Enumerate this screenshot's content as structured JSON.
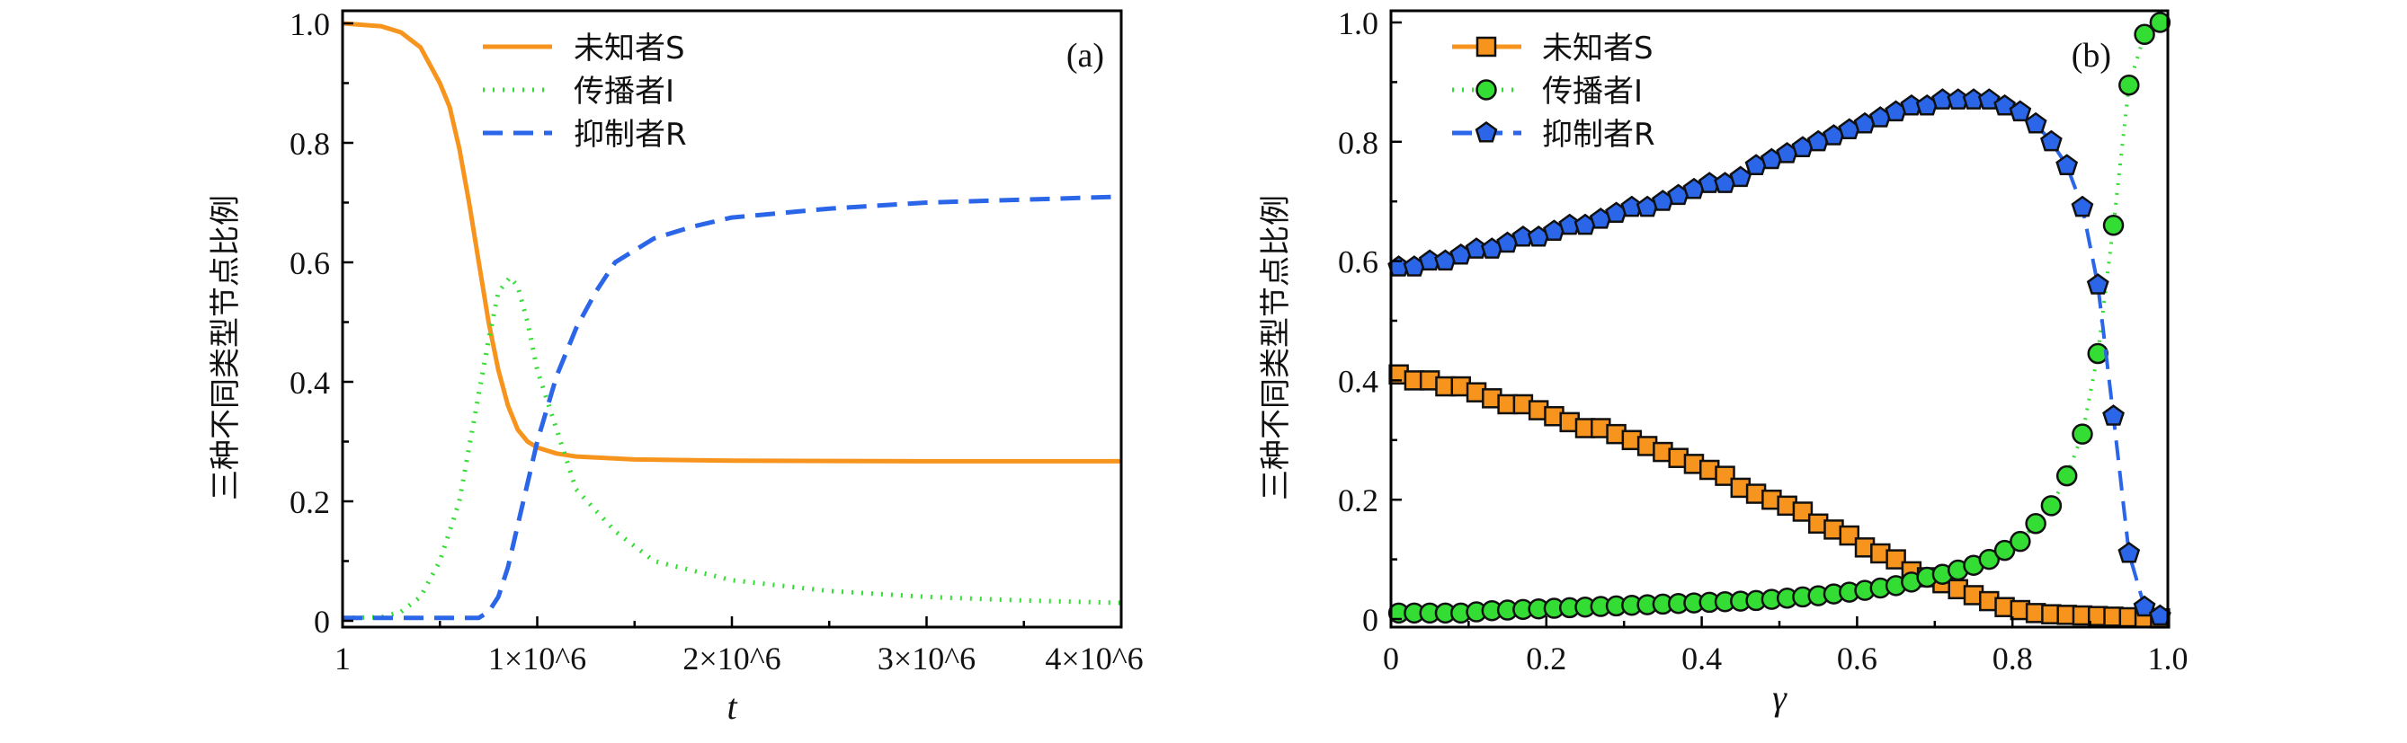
{
  "chart_data": [
    {
      "panel_label": "(a)",
      "type": "line",
      "xlabel": "t",
      "ylabel": "三种不同类型节点比例",
      "xlim": [
        1,
        4000000
      ],
      "ylim": [
        0,
        1.0
      ],
      "xticks": [
        1,
        1000000,
        2000000,
        3000000,
        4000000
      ],
      "xtick_labels": [
        "1",
        "1×10^6",
        "2×10^6",
        "3×10^6",
        "4×10^6"
      ],
      "yticks": [
        0,
        0.2,
        0.4,
        0.6,
        0.8,
        1.0
      ],
      "ytick_labels": [
        "0",
        "0.2",
        "0.4",
        "0.6",
        "0.8",
        "1.0"
      ],
      "grid": false,
      "legend_position": "top-center",
      "series": [
        {
          "name": "未知者S",
          "color": "#f7941d",
          "style": "solid",
          "x": [
            1,
            200000,
            300000,
            400000,
            500000,
            550000,
            600000,
            650000,
            700000,
            750000,
            800000,
            850000,
            900000,
            950000,
            1000000,
            1100000,
            1200000,
            1500000,
            2000000,
            3000000,
            4000000
          ],
          "y": [
            1.0,
            0.995,
            0.985,
            0.96,
            0.9,
            0.86,
            0.79,
            0.7,
            0.6,
            0.5,
            0.42,
            0.36,
            0.32,
            0.3,
            0.29,
            0.28,
            0.275,
            0.27,
            0.268,
            0.267,
            0.267
          ]
        },
        {
          "name": "传播者I",
          "color": "#33dd33",
          "style": "dotted",
          "x": [
            1,
            200000,
            300000,
            400000,
            500000,
            600000,
            700000,
            750000,
            800000,
            860000,
            900000,
            950000,
            1000000,
            1100000,
            1200000,
            1400000,
            1600000,
            2000000,
            2500000,
            3000000,
            3500000,
            4000000
          ],
          "y": [
            0.005,
            0.006,
            0.015,
            0.04,
            0.1,
            0.2,
            0.38,
            0.47,
            0.55,
            0.575,
            0.56,
            0.5,
            0.42,
            0.32,
            0.22,
            0.15,
            0.1,
            0.068,
            0.05,
            0.04,
            0.034,
            0.03
          ]
        },
        {
          "name": "抑制者R",
          "color": "#2b66e8",
          "style": "dashed",
          "x": [
            1,
            700000,
            750000,
            800000,
            850000,
            900000,
            950000,
            1000000,
            1100000,
            1200000,
            1300000,
            1400000,
            1600000,
            1800000,
            2000000,
            2500000,
            3000000,
            3500000,
            4000000
          ],
          "y": [
            0.005,
            0.005,
            0.015,
            0.04,
            0.09,
            0.16,
            0.23,
            0.3,
            0.41,
            0.49,
            0.55,
            0.6,
            0.64,
            0.66,
            0.675,
            0.69,
            0.7,
            0.705,
            0.71
          ]
        }
      ]
    },
    {
      "panel_label": "(b)",
      "type": "line",
      "xlabel": "γ",
      "ylabel": "三种不同类型节点比例",
      "xlim": [
        0,
        1.0
      ],
      "ylim": [
        0,
        1.0
      ],
      "xticks": [
        0,
        0.2,
        0.4,
        0.6,
        0.8,
        1.0
      ],
      "xtick_labels": [
        "0",
        "0.2",
        "0.4",
        "0.6",
        "0.8",
        "1.0"
      ],
      "yticks": [
        0,
        0.2,
        0.4,
        0.6,
        0.8,
        1.0
      ],
      "ytick_labels": [
        "0",
        "0.2",
        "0.4",
        "0.6",
        "0.8",
        "1.0"
      ],
      "grid": false,
      "legend_position": "top-left",
      "x": [
        0.01,
        0.03,
        0.05,
        0.07,
        0.09,
        0.11,
        0.13,
        0.15,
        0.17,
        0.19,
        0.21,
        0.23,
        0.25,
        0.27,
        0.29,
        0.31,
        0.33,
        0.35,
        0.37,
        0.39,
        0.41,
        0.43,
        0.45,
        0.47,
        0.49,
        0.51,
        0.53,
        0.55,
        0.57,
        0.59,
        0.61,
        0.63,
        0.65,
        0.67,
        0.69,
        0.71,
        0.73,
        0.75,
        0.77,
        0.79,
        0.81,
        0.83,
        0.85,
        0.87,
        0.89,
        0.91,
        0.93,
        0.95,
        0.97,
        0.99
      ],
      "series": [
        {
          "name": "未知者S",
          "color": "#f7941d",
          "style": "solid",
          "marker": "square",
          "y": [
            0.41,
            0.4,
            0.4,
            0.39,
            0.39,
            0.38,
            0.37,
            0.36,
            0.36,
            0.35,
            0.34,
            0.33,
            0.32,
            0.32,
            0.31,
            0.3,
            0.29,
            0.28,
            0.27,
            0.26,
            0.25,
            0.24,
            0.22,
            0.21,
            0.2,
            0.19,
            0.18,
            0.16,
            0.15,
            0.14,
            0.12,
            0.11,
            0.1,
            0.08,
            0.07,
            0.06,
            0.05,
            0.04,
            0.03,
            0.02,
            0.015,
            0.01,
            0.008,
            0.007,
            0.006,
            0.005,
            0.004,
            0.003,
            0.002,
            0.001
          ]
        },
        {
          "name": "传播者I",
          "color": "#33dd33",
          "style": "dotted",
          "marker": "circle",
          "y": [
            0.01,
            0.01,
            0.01,
            0.01,
            0.01,
            0.012,
            0.014,
            0.015,
            0.016,
            0.017,
            0.018,
            0.019,
            0.02,
            0.021,
            0.022,
            0.023,
            0.024,
            0.025,
            0.026,
            0.027,
            0.028,
            0.029,
            0.03,
            0.031,
            0.033,
            0.035,
            0.037,
            0.039,
            0.042,
            0.045,
            0.048,
            0.052,
            0.056,
            0.062,
            0.07,
            0.075,
            0.082,
            0.09,
            0.1,
            0.115,
            0.13,
            0.16,
            0.19,
            0.24,
            0.31,
            0.445,
            0.66,
            0.895,
            0.98,
            1.0
          ]
        },
        {
          "name": "抑制者R",
          "color": "#2b66e8",
          "style": "dashed",
          "marker": "pentagon",
          "y": [
            0.59,
            0.59,
            0.6,
            0.6,
            0.61,
            0.62,
            0.62,
            0.63,
            0.64,
            0.64,
            0.65,
            0.66,
            0.66,
            0.67,
            0.68,
            0.69,
            0.69,
            0.7,
            0.71,
            0.72,
            0.73,
            0.73,
            0.74,
            0.76,
            0.77,
            0.78,
            0.79,
            0.8,
            0.81,
            0.82,
            0.83,
            0.84,
            0.85,
            0.86,
            0.86,
            0.87,
            0.87,
            0.87,
            0.87,
            0.86,
            0.85,
            0.83,
            0.8,
            0.76,
            0.69,
            0.56,
            0.34,
            0.11,
            0.02,
            0.005
          ]
        }
      ]
    }
  ]
}
